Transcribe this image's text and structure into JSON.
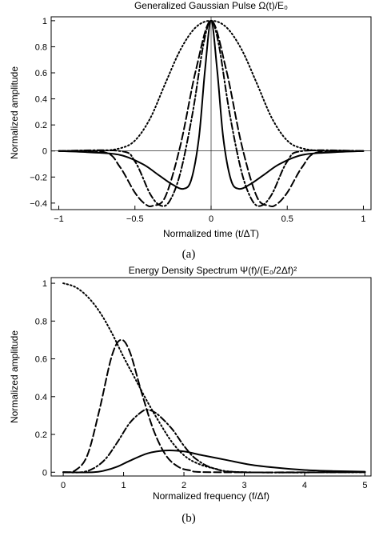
{
  "chart_data": [
    {
      "type": "line",
      "title": "Generalized Gaussian Pulse Ω(t)/E₀",
      "xlabel": "Normalized time (t/ΔT)",
      "ylabel": "Normalized amplitude",
      "caption": "(a)",
      "xlim": [
        -1.05,
        1.05
      ],
      "ylim": [
        -0.45,
        1.03
      ],
      "xticks": [
        -1,
        -0.5,
        0,
        0.5,
        1
      ],
      "xtick_labels": [
        "−1",
        "−0.5",
        "0",
        "0.5",
        "1"
      ],
      "yticks": [
        -0.4,
        -0.2,
        0,
        0.2,
        0.4,
        0.6,
        0.8,
        1
      ],
      "ytick_labels": [
        "−0.4",
        "−0.2",
        "0",
        "0.2",
        "0.4",
        "0.6",
        "0.8",
        "1"
      ],
      "reference_lines": {
        "x": 0,
        "y": 0
      },
      "grid": false,
      "series": [
        {
          "style": "dotted",
          "points": [
            [
              -1,
              0.0
            ],
            [
              -0.75,
              0.0
            ],
            [
              -0.6,
              0.02
            ],
            [
              -0.5,
              0.08
            ],
            [
              -0.4,
              0.25
            ],
            [
              -0.3,
              0.52
            ],
            [
              -0.2,
              0.78
            ],
            [
              -0.1,
              0.95
            ],
            [
              0,
              1.0
            ],
            [
              0.1,
              0.95
            ],
            [
              0.2,
              0.78
            ],
            [
              0.3,
              0.52
            ],
            [
              0.4,
              0.25
            ],
            [
              0.5,
              0.08
            ],
            [
              0.6,
              0.02
            ],
            [
              0.75,
              0.0
            ],
            [
              1,
              0.0
            ]
          ]
        },
        {
          "style": "dashed",
          "points": [
            [
              -1,
              0.0
            ],
            [
              -0.7,
              -0.01
            ],
            [
              -0.6,
              -0.12
            ],
            [
              -0.5,
              -0.32
            ],
            [
              -0.43,
              -0.41
            ],
            [
              -0.38,
              -0.42
            ],
            [
              -0.3,
              -0.35
            ],
            [
              -0.2,
              0.05
            ],
            [
              -0.1,
              0.62
            ],
            [
              0,
              1.0
            ],
            [
              0.1,
              0.62
            ],
            [
              0.2,
              0.05
            ],
            [
              0.3,
              -0.35
            ],
            [
              0.38,
              -0.42
            ],
            [
              0.43,
              -0.41
            ],
            [
              0.5,
              -0.32
            ],
            [
              0.6,
              -0.12
            ],
            [
              0.7,
              -0.01
            ],
            [
              1,
              0.0
            ]
          ]
        },
        {
          "style": "dash-dot",
          "points": [
            [
              -1,
              0.0
            ],
            [
              -0.6,
              0.0
            ],
            [
              -0.5,
              -0.08
            ],
            [
              -0.4,
              -0.33
            ],
            [
              -0.33,
              -0.42
            ],
            [
              -0.27,
              -0.38
            ],
            [
              -0.2,
              -0.16
            ],
            [
              -0.12,
              0.3
            ],
            [
              -0.05,
              0.82
            ],
            [
              0,
              1.0
            ],
            [
              0.05,
              0.82
            ],
            [
              0.12,
              0.3
            ],
            [
              0.2,
              -0.16
            ],
            [
              0.27,
              -0.38
            ],
            [
              0.33,
              -0.42
            ],
            [
              0.4,
              -0.33
            ],
            [
              0.5,
              -0.08
            ],
            [
              0.6,
              0.0
            ],
            [
              1,
              0.0
            ]
          ]
        },
        {
          "style": "solid",
          "points": [
            [
              -1,
              0.0
            ],
            [
              -0.8,
              -0.01
            ],
            [
              -0.6,
              -0.03
            ],
            [
              -0.45,
              -0.1
            ],
            [
              -0.35,
              -0.18
            ],
            [
              -0.25,
              -0.26
            ],
            [
              -0.18,
              -0.29
            ],
            [
              -0.13,
              -0.22
            ],
            [
              -0.08,
              0.1
            ],
            [
              -0.04,
              0.62
            ],
            [
              0,
              1.0
            ],
            [
              0.04,
              0.62
            ],
            [
              0.08,
              0.1
            ],
            [
              0.13,
              -0.22
            ],
            [
              0.18,
              -0.29
            ],
            [
              0.25,
              -0.26
            ],
            [
              0.35,
              -0.18
            ],
            [
              0.45,
              -0.1
            ],
            [
              0.6,
              -0.03
            ],
            [
              0.8,
              -0.01
            ],
            [
              1,
              0.0
            ]
          ]
        }
      ]
    },
    {
      "type": "line",
      "title": "Energy Density Spectrum Ψ(f)/(E₀/2Δf)²",
      "xlabel": "Normalized frequency (f/Δf)",
      "ylabel": "Normalized amplitude",
      "caption": "(b)",
      "xlim": [
        -0.2,
        5.1
      ],
      "ylim": [
        -0.02,
        1.03
      ],
      "xticks": [
        0,
        1,
        2,
        3,
        4,
        5
      ],
      "xtick_labels": [
        "0",
        "1",
        "2",
        "3",
        "4",
        "5"
      ],
      "yticks": [
        0,
        0.2,
        0.4,
        0.6,
        0.8,
        1
      ],
      "ytick_labels": [
        "0",
        "0.2",
        "0.4",
        "0.6",
        "0.8",
        "1"
      ],
      "grid": false,
      "series": [
        {
          "style": "dotted",
          "points": [
            [
              0,
              1.0
            ],
            [
              0.2,
              0.98
            ],
            [
              0.4,
              0.93
            ],
            [
              0.6,
              0.85
            ],
            [
              0.8,
              0.74
            ],
            [
              1.0,
              0.61
            ],
            [
              1.2,
              0.49
            ],
            [
              1.4,
              0.37
            ],
            [
              1.6,
              0.26
            ],
            [
              1.8,
              0.16
            ],
            [
              2.0,
              0.09
            ],
            [
              2.2,
              0.05
            ],
            [
              2.5,
              0.02
            ],
            [
              3,
              0.0
            ],
            [
              5,
              0.0
            ]
          ]
        },
        {
          "style": "dashed",
          "points": [
            [
              0,
              0.0
            ],
            [
              0.2,
              0.01
            ],
            [
              0.4,
              0.09
            ],
            [
              0.6,
              0.33
            ],
            [
              0.8,
              0.61
            ],
            [
              0.95,
              0.7
            ],
            [
              1.1,
              0.64
            ],
            [
              1.3,
              0.42
            ],
            [
              1.5,
              0.22
            ],
            [
              1.7,
              0.09
            ],
            [
              1.9,
              0.03
            ],
            [
              2.1,
              0.01
            ],
            [
              2.5,
              0.0
            ],
            [
              5,
              0.0
            ]
          ]
        },
        {
          "style": "dash-dot",
          "points": [
            [
              0,
              0.0
            ],
            [
              0.3,
              0.0
            ],
            [
              0.5,
              0.02
            ],
            [
              0.7,
              0.07
            ],
            [
              0.9,
              0.16
            ],
            [
              1.1,
              0.26
            ],
            [
              1.3,
              0.32
            ],
            [
              1.4,
              0.33
            ],
            [
              1.55,
              0.31
            ],
            [
              1.8,
              0.23
            ],
            [
              2.0,
              0.14
            ],
            [
              2.2,
              0.07
            ],
            [
              2.5,
              0.02
            ],
            [
              3,
              0.0
            ],
            [
              5,
              0.0
            ]
          ]
        },
        {
          "style": "solid",
          "points": [
            [
              0,
              0.0
            ],
            [
              0.5,
              0.0
            ],
            [
              0.7,
              0.01
            ],
            [
              0.9,
              0.03
            ],
            [
              1.1,
              0.06
            ],
            [
              1.4,
              0.1
            ],
            [
              1.7,
              0.115
            ],
            [
              2.0,
              0.11
            ],
            [
              2.3,
              0.09
            ],
            [
              2.7,
              0.065
            ],
            [
              3.1,
              0.04
            ],
            [
              3.5,
              0.025
            ],
            [
              4.0,
              0.012
            ],
            [
              4.5,
              0.006
            ],
            [
              5,
              0.003
            ]
          ]
        }
      ]
    }
  ]
}
